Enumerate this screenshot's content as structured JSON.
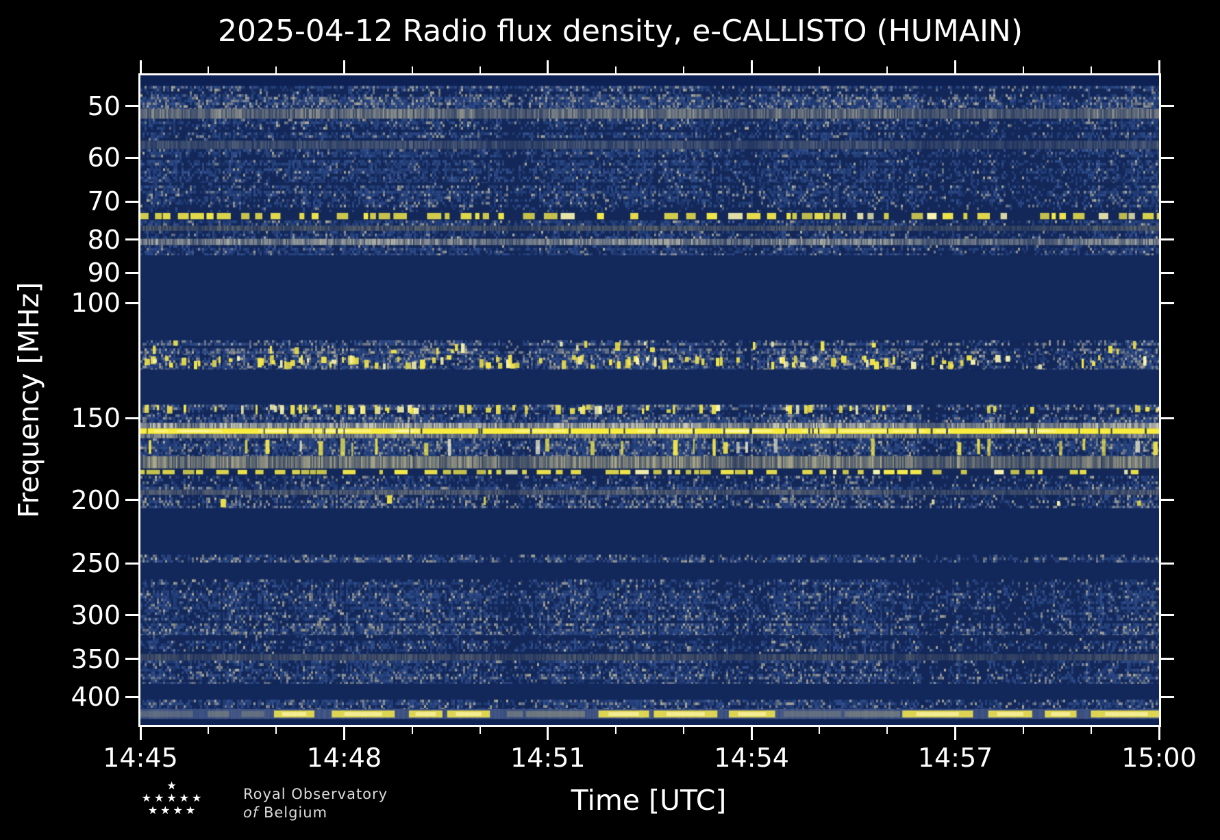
{
  "figure": {
    "title": "2025-04-12 Radio flux density, e-CALLISTO (HUMAIN)",
    "background_color": "#000000",
    "text_color": "#ffffff"
  },
  "axes": {
    "xlabel": "Time [UTC]",
    "ylabel": "Frequency [MHz]",
    "x_major_ticks": [
      "14:45",
      "14:48",
      "14:51",
      "14:54",
      "14:57",
      "15:00"
    ],
    "y_major_ticks": [
      "50",
      "60",
      "70",
      "80",
      "90",
      "100",
      "150",
      "200",
      "250",
      "300",
      "350",
      "400"
    ]
  },
  "logo": {
    "star_rows": [
      1,
      5,
      4
    ],
    "line1": "Royal Observatory",
    "line2_italic": "of",
    "line2_rest": "Belgium"
  },
  "chart_data": {
    "type": "heatmap",
    "title": "2025-04-12 Radio flux density, e-CALLISTO (HUMAIN)",
    "xlabel": "Time [UTC]",
    "ylabel": "Frequency [MHz]",
    "x_range_utc": [
      "14:45",
      "15:00"
    ],
    "x_total_minutes": 15,
    "x_major_step_min": 3,
    "x_minor_step_min": 1,
    "y_scale": "log",
    "y_axis_inverted": true,
    "y_range_mhz": [
      44.9,
      441.5
    ],
    "legend": "none",
    "grid": false,
    "palette": {
      "quiet": "#132859",
      "blue_dim": "#23407a",
      "blue_mid": "#32508f",
      "blue_light": "#49629b",
      "grays": [
        "#7d879b",
        "#989a94",
        "#b0ae9c"
      ],
      "yellow": "#f4e74b",
      "pale_yellow": "#fdf7b0"
    },
    "bands": [
      {
        "f": [
          44.9,
          46.6
        ],
        "kind": "quiet",
        "base": "#0d2154"
      },
      {
        "f": [
          46.6,
          50.5
        ],
        "kind": "noise",
        "density": 0.85,
        "grayBias": 0.35
      },
      {
        "f": [
          50.5,
          52.3
        ],
        "kind": "haze",
        "color": "#b9b79f",
        "density": 0.55
      },
      {
        "f": [
          52.3,
          56.5
        ],
        "kind": "noise",
        "density": 0.7,
        "grayBias": 0.2
      },
      {
        "f": [
          56.5,
          58.2
        ],
        "kind": "haze",
        "color": "#9aa0a0",
        "density": 0.35
      },
      {
        "f": [
          58.2,
          65.5
        ],
        "kind": "noise",
        "density": 0.55,
        "grayBias": 0.1
      },
      {
        "f": [
          65.5,
          72.6
        ],
        "kind": "noise",
        "density": 0.7,
        "grayBias": 0.2
      },
      {
        "f": [
          72.6,
          74.8
        ],
        "kind": "carrier-dashed",
        "color": "#f6ea49",
        "h_frac": 0.75
      },
      {
        "f": [
          74.8,
          76.2
        ],
        "kind": "noise",
        "density": 0.6,
        "grayBias": 0.15
      },
      {
        "f": [
          76.2,
          77.6
        ],
        "kind": "haze",
        "color": "#c9c08b",
        "density": 0.3
      },
      {
        "f": [
          77.6,
          79.8
        ],
        "kind": "noise",
        "density": 0.6,
        "grayBias": 0.15
      },
      {
        "f": [
          79.8,
          81.6
        ],
        "kind": "haze",
        "color": "#d3d1b8",
        "density": 0.6
      },
      {
        "f": [
          81.6,
          84.6
        ],
        "kind": "noise",
        "density": 0.6,
        "grayBias": 0.15
      },
      {
        "f": [
          84.6,
          114.0
        ],
        "kind": "quiet",
        "base": "#13285b"
      },
      {
        "f": [
          114.0,
          120.0
        ],
        "kind": "speckle",
        "density": 0.8,
        "grayBias": 0.4,
        "yellow": 0.05
      },
      {
        "f": [
          120.0,
          126.5
        ],
        "kind": "speckle",
        "density": 0.75,
        "grayBias": 0.35,
        "yellow": 0.2
      },
      {
        "f": [
          126.5,
          143.0
        ],
        "kind": "quiet",
        "base": "#13285b"
      },
      {
        "f": [
          143.0,
          148.0
        ],
        "kind": "speckle",
        "density": 0.85,
        "grayBias": 0.35,
        "yellow": 0.12
      },
      {
        "f": [
          148.0,
          152.5
        ],
        "kind": "noise",
        "density": 0.8,
        "grayBias": 0.3
      },
      {
        "f": [
          152.5,
          155.5
        ],
        "kind": "haze",
        "color": "#d9d6bd",
        "density": 0.75
      },
      {
        "f": [
          155.5,
          158.5
        ],
        "kind": "carrier-solid",
        "color": "#f8ec3f"
      },
      {
        "f": [
          158.5,
          161.0
        ],
        "kind": "haze",
        "color": "#c2bfa4",
        "density": 0.6
      },
      {
        "f": [
          161.0,
          171.5
        ],
        "kind": "streaks",
        "density": 0.8,
        "grayBias": 0.25,
        "streak": 0.2
      },
      {
        "f": [
          171.5,
          179.0
        ],
        "kind": "haze",
        "color": "#b5b18d",
        "density": 0.7
      },
      {
        "f": [
          179.0,
          183.8
        ],
        "kind": "carrier-dashed",
        "color": "#f6ea49",
        "h_frac": 0.6
      },
      {
        "f": [
          183.8,
          193.0
        ],
        "kind": "noise",
        "density": 0.7,
        "grayBias": 0.25
      },
      {
        "f": [
          193.0,
          196.5
        ],
        "kind": "haze",
        "color": "#a5a391",
        "density": 0.45
      },
      {
        "f": [
          196.5,
          206.0
        ],
        "kind": "speckle",
        "density": 0.8,
        "grayBias": 0.4,
        "yellow": 0.03
      },
      {
        "f": [
          206.0,
          242.5
        ],
        "kind": "quiet",
        "base": "#12275a"
      },
      {
        "f": [
          242.5,
          249.5
        ],
        "kind": "noise",
        "density": 0.6,
        "grayBias": 0.3
      },
      {
        "f": [
          249.5,
          264.5
        ],
        "kind": "quiet",
        "base": "#12275a"
      },
      {
        "f": [
          264.5,
          300.0
        ],
        "kind": "noise",
        "density": 0.6,
        "grayBias": 0.18
      },
      {
        "f": [
          300.0,
          322.0
        ],
        "kind": "noise",
        "density": 0.75,
        "grayBias": 0.3
      },
      {
        "f": [
          322.0,
          344.0
        ],
        "kind": "noise",
        "density": 0.6,
        "grayBias": 0.18
      },
      {
        "f": [
          344.0,
          352.0
        ],
        "kind": "haze",
        "color": "#9a9889",
        "density": 0.35
      },
      {
        "f": [
          352.0,
          369.0
        ],
        "kind": "noise",
        "density": 0.6,
        "grayBias": 0.18
      },
      {
        "f": [
          369.0,
          382.0
        ],
        "kind": "noise",
        "density": 0.7,
        "grayBias": 0.3
      },
      {
        "f": [
          382.0,
          404.0
        ],
        "kind": "quiet",
        "base": "#12275a"
      },
      {
        "f": [
          404.0,
          417.5
        ],
        "kind": "noise",
        "density": 0.65,
        "grayBias": 0.25
      },
      {
        "f": [
          417.5,
          432.5
        ],
        "kind": "patches"
      },
      {
        "f": [
          432.5,
          441.5
        ],
        "kind": "quiet",
        "base": "#0f2455"
      }
    ]
  }
}
